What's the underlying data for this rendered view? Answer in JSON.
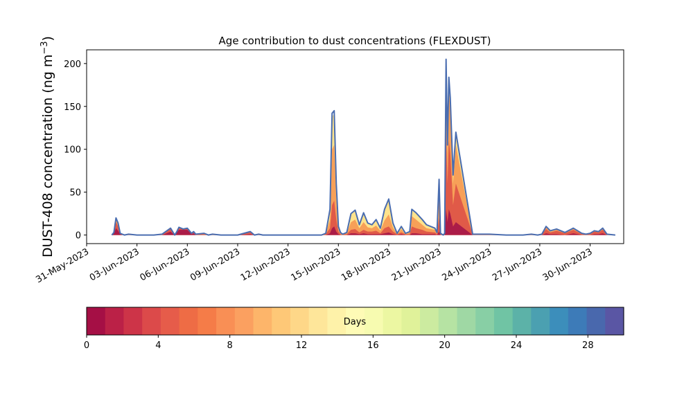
{
  "chart_data": {
    "type": "area",
    "title": "Age contribution to dust concentrations (FLEXDUST)",
    "ylabel": "DUST-408 concentration (ng m⁻³)",
    "xlabel": "",
    "x_range": [
      "2023-05-31",
      "2023-07-02"
    ],
    "ylim": [
      -10,
      216
    ],
    "yticks": [
      0,
      50,
      100,
      150,
      200
    ],
    "xticks": [
      "2023-05-31",
      "2023-06-03",
      "2023-06-06",
      "2023-06-09",
      "2023-06-12",
      "2023-06-15",
      "2023-06-18",
      "2023-06-21",
      "2023-06-24",
      "2023-06-27",
      "2023-06-30"
    ],
    "xtick_labels": [
      "31-May-2023",
      "03-Jun-2023",
      "06-Jun-2023",
      "09-Jun-2023",
      "12-Jun-2023",
      "15-Jun-2023",
      "18-Jun-2023",
      "21-Jun-2023",
      "24-Jun-2023",
      "27-Jun-2023",
      "30-Jun-2023"
    ],
    "grid": false,
    "total_line_color": "#4a6db0",
    "series_total": {
      "name": "total",
      "x": [
        "2023-06-01T12:00",
        "2023-06-01T15:00",
        "2023-06-01T18:00",
        "2023-06-01T21:00",
        "2023-06-02T00:00",
        "2023-06-02T03:00",
        "2023-06-02T06:00",
        "2023-06-02T12:00",
        "2023-06-03T00:00",
        "2023-06-04T00:00",
        "2023-06-04T12:00",
        "2023-06-05T00:00",
        "2023-06-05T06:00",
        "2023-06-05T09:00",
        "2023-06-05T12:00",
        "2023-06-05T18:00",
        "2023-06-06T00:00",
        "2023-06-06T06:00",
        "2023-06-06T09:00",
        "2023-06-06T12:00",
        "2023-06-07T00:00",
        "2023-06-07T06:00",
        "2023-06-07T12:00",
        "2023-06-08T00:00",
        "2023-06-09T00:00",
        "2023-06-09T18:00",
        "2023-06-10T00:00",
        "2023-06-10T06:00",
        "2023-06-10T12:00",
        "2023-06-11T00:00",
        "2023-06-12T00:00",
        "2023-06-13T00:00",
        "2023-06-14T00:00",
        "2023-06-14T06:00",
        "2023-06-14T12:00",
        "2023-06-14T15:00",
        "2023-06-14T18:00",
        "2023-06-14T21:00",
        "2023-06-15T00:00",
        "2023-06-15T03:00",
        "2023-06-15T06:00",
        "2023-06-15T09:00",
        "2023-06-15T12:00",
        "2023-06-15T18:00",
        "2023-06-16T00:00",
        "2023-06-16T06:00",
        "2023-06-16T12:00",
        "2023-06-16T18:00",
        "2023-06-17T00:00",
        "2023-06-17T06:00",
        "2023-06-17T12:00",
        "2023-06-17T18:00",
        "2023-06-18T00:00",
        "2023-06-18T06:00",
        "2023-06-18T12:00",
        "2023-06-18T18:00",
        "2023-06-19T00:00",
        "2023-06-19T06:00",
        "2023-06-19T09:00",
        "2023-06-19T15:00",
        "2023-06-20T00:00",
        "2023-06-20T06:00",
        "2023-06-20T18:00",
        "2023-06-20T21:00",
        "2023-06-21T00:00",
        "2023-06-21T02:00",
        "2023-06-21T04:00",
        "2023-06-21T06:00",
        "2023-06-21T08:00",
        "2023-06-21T10:00",
        "2023-06-21T12:00",
        "2023-06-21T14:00",
        "2023-06-21T16:00",
        "2023-06-21T20:00",
        "2023-06-22T00:00",
        "2023-06-23T00:00",
        "2023-06-24T00:00",
        "2023-06-25T00:00",
        "2023-06-26T00:00",
        "2023-06-26T12:00",
        "2023-06-26T21:00",
        "2023-06-27T03:00",
        "2023-06-27T09:00",
        "2023-06-27T15:00",
        "2023-06-28T00:00",
        "2023-06-28T12:00",
        "2023-06-29T00:00",
        "2023-06-29T12:00",
        "2023-06-29T18:00",
        "2023-06-30T00:00",
        "2023-06-30T06:00",
        "2023-06-30T12:00",
        "2023-06-30T18:00",
        "2023-07-01T00:00",
        "2023-07-01T12:00"
      ],
      "y": [
        0,
        3,
        20,
        14,
        2,
        1,
        0,
        1,
        0,
        0,
        1,
        8,
        0,
        4,
        9,
        7,
        8,
        2,
        4,
        1,
        2,
        0,
        1,
        0,
        0,
        4,
        0,
        1,
        0,
        0,
        0,
        0,
        0,
        2,
        30,
        142,
        145,
        60,
        10,
        3,
        1,
        2,
        3,
        25,
        29,
        12,
        26,
        14,
        12,
        18,
        8,
        30,
        42,
        14,
        2,
        10,
        2,
        4,
        30,
        26,
        18,
        12,
        8,
        3,
        65,
        2,
        1,
        0,
        2,
        205,
        105,
        184,
        160,
        70,
        120,
        1,
        1,
        0,
        0,
        1,
        0,
        1,
        10,
        5,
        7,
        3,
        8,
        2,
        1,
        2,
        5,
        4,
        8,
        1,
        0
      ]
    },
    "bands": [
      {
        "age_days": 2,
        "color": "#ab1c48",
        "y": [
          0,
          2,
          8,
          5,
          1,
          0,
          0,
          0,
          0,
          0,
          0,
          4,
          0,
          3,
          6,
          6,
          6,
          1,
          2,
          0,
          0,
          0,
          0,
          0,
          0,
          1,
          0,
          0,
          0,
          0,
          0,
          0,
          0,
          0,
          2,
          8,
          10,
          4,
          1,
          0,
          0,
          0,
          0,
          2,
          2,
          1,
          2,
          1,
          1,
          1,
          1,
          2,
          3,
          1,
          0,
          1,
          0,
          0,
          2,
          2,
          1,
          1,
          1,
          0,
          4,
          0,
          0,
          0,
          0,
          30,
          15,
          30,
          25,
          10,
          15,
          0,
          0,
          0,
          0,
          0,
          0,
          0,
          2,
          1,
          1,
          0,
          2,
          0,
          0,
          0,
          1,
          1,
          2,
          0,
          0
        ]
      },
      {
        "age_days": 6,
        "color": "#e05a48",
        "y": [
          0,
          3,
          15,
          10,
          2,
          1,
          0,
          1,
          0,
          0,
          1,
          7,
          0,
          4,
          8,
          7,
          7,
          2,
          3,
          1,
          1,
          0,
          1,
          0,
          0,
          3,
          0,
          1,
          0,
          0,
          0,
          0,
          0,
          1,
          8,
          35,
          40,
          18,
          4,
          1,
          0,
          1,
          1,
          6,
          7,
          3,
          6,
          4,
          4,
          5,
          2,
          8,
          10,
          4,
          1,
          3,
          1,
          1,
          10,
          8,
          6,
          4,
          3,
          1,
          20,
          1,
          1,
          0,
          1,
          120,
          60,
          110,
          95,
          35,
          60,
          1,
          1,
          0,
          0,
          1,
          0,
          1,
          7,
          3,
          5,
          2,
          6,
          1,
          1,
          1,
          4,
          3,
          6,
          1,
          0
        ]
      },
      {
        "age_days": 9,
        "color": "#f7a058",
        "y": [
          0,
          3,
          19,
          13,
          2,
          1,
          0,
          1,
          0,
          0,
          1,
          8,
          0,
          4,
          9,
          7,
          8,
          2,
          4,
          1,
          2,
          0,
          1,
          0,
          0,
          4,
          0,
          1,
          0,
          0,
          0,
          0,
          0,
          2,
          18,
          100,
          105,
          40,
          7,
          2,
          1,
          2,
          2,
          15,
          18,
          8,
          15,
          9,
          8,
          11,
          5,
          17,
          24,
          9,
          1,
          7,
          1,
          3,
          22,
          18,
          12,
          8,
          6,
          2,
          50,
          1,
          1,
          0,
          2,
          185,
          95,
          170,
          148,
          60,
          105,
          1,
          1,
          0,
          0,
          1,
          0,
          1,
          9,
          4,
          6,
          3,
          7,
          2,
          1,
          2,
          5,
          4,
          7,
          1,
          0
        ]
      },
      {
        "age_days": 13,
        "color": "#fee38c",
        "y": [
          0,
          3,
          20,
          14,
          2,
          1,
          0,
          1,
          0,
          0,
          1,
          8,
          0,
          4,
          9,
          7,
          8,
          2,
          4,
          1,
          2,
          0,
          1,
          0,
          0,
          4,
          0,
          1,
          0,
          0,
          0,
          0,
          0,
          2,
          28,
          138,
          141,
          58,
          10,
          3,
          1,
          2,
          3,
          24,
          28,
          12,
          25,
          14,
          12,
          18,
          8,
          29,
          41,
          14,
          2,
          10,
          2,
          4,
          29,
          25,
          17,
          12,
          8,
          3,
          63,
          2,
          1,
          0,
          2,
          203,
          104,
          182,
          158,
          69,
          118,
          1,
          1,
          0,
          0,
          1,
          0,
          1,
          10,
          5,
          7,
          3,
          8,
          2,
          1,
          2,
          5,
          4,
          8,
          1,
          0
        ]
      }
    ],
    "colorbar": {
      "label": "Days",
      "vmin": 0,
      "vmax": 30,
      "ticks": [
        0,
        4,
        8,
        12,
        16,
        20,
        24,
        28
      ],
      "colors": [
        "#a50f45",
        "#bb2147",
        "#cd3448",
        "#dc4a4a",
        "#e65c4a",
        "#ee6c45",
        "#f57c48",
        "#f98f55",
        "#fba060",
        "#fdb56a",
        "#fec877",
        "#fed788",
        "#fee69a",
        "#fef2a9",
        "#fefbb6",
        "#f7fbb0",
        "#ecf7a2",
        "#e0f29a",
        "#cceba0",
        "#b6e3a3",
        "#9fd8a4",
        "#88cfa5",
        "#70c4a4",
        "#5cb2a8",
        "#4ba0b1",
        "#3c8ebb",
        "#3d7bb8",
        "#4968ad",
        "#5a56a4"
      ]
    }
  }
}
